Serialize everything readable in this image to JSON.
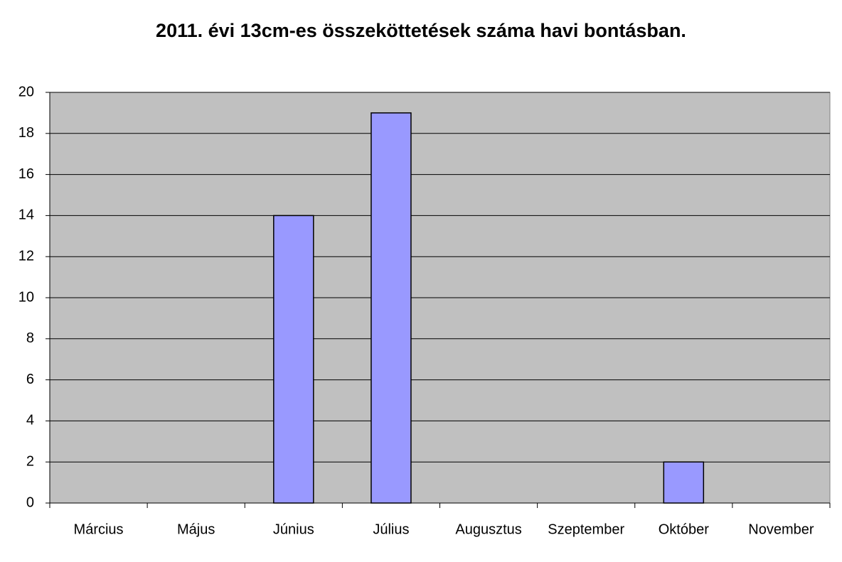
{
  "chart_data": {
    "type": "bar",
    "title": "2011. évi 13cm-es összeköttetések száma havi bontásban.",
    "categories": [
      "Március",
      "Május",
      "Június",
      "Július",
      "Augusztus",
      "Szeptember",
      "Október",
      "November"
    ],
    "values": [
      0,
      0,
      14,
      19,
      0,
      0,
      2,
      0
    ],
    "color": "#9999ff",
    "ylim": [
      0,
      20
    ],
    "yticks": [
      0,
      2,
      4,
      6,
      8,
      10,
      12,
      14,
      16,
      18,
      20
    ],
    "grid": true
  }
}
